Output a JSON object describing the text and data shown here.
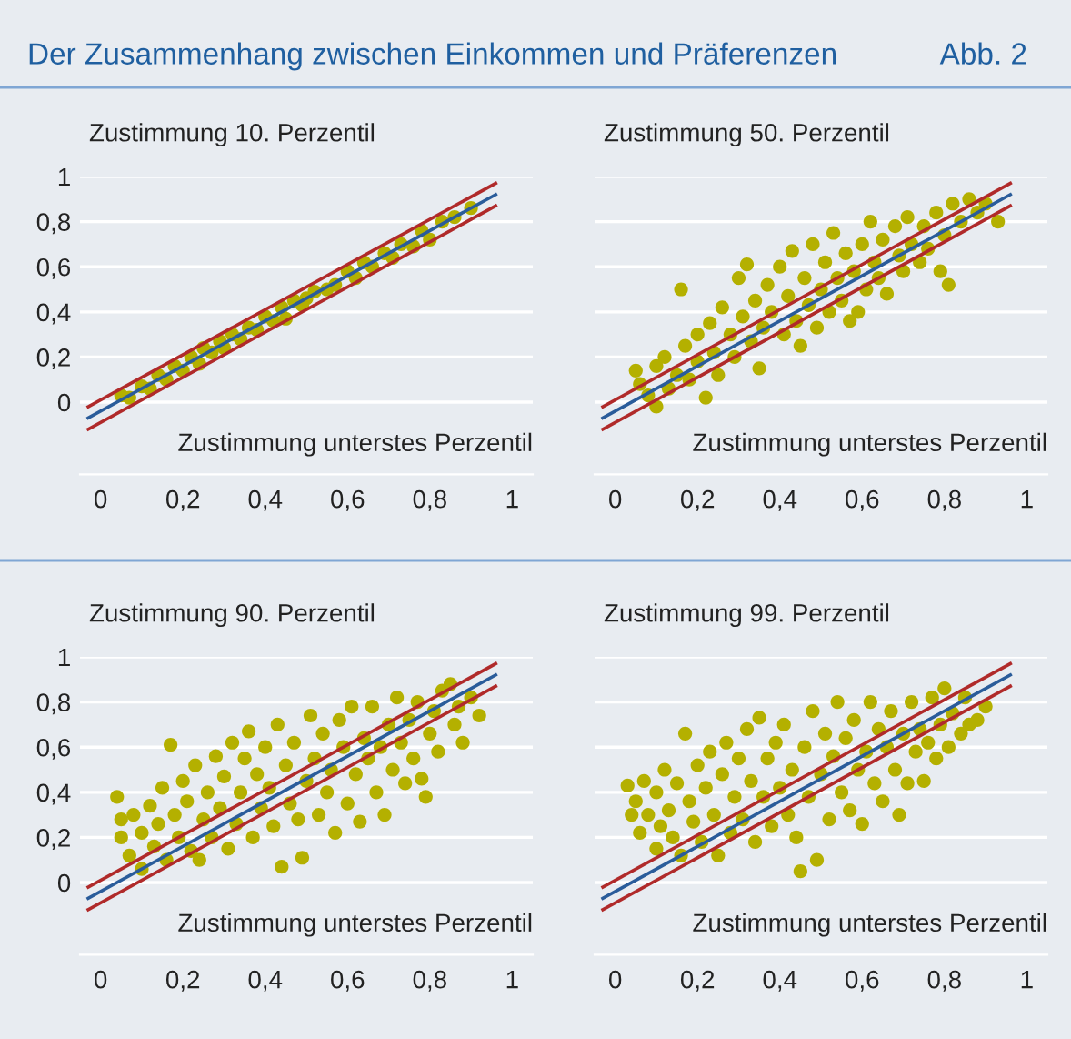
{
  "chart_data": [
    {
      "type": "scatter",
      "title": "Der Zusammenhang zwischen Einkommen und Präferenzen",
      "annotations": [
        "Abb. 2"
      ],
      "ylabel": "Zustimmung 10. Perzentil",
      "xlabel": "Zustimmung unterstes Perzentil",
      "xlim": [
        -0.05,
        1.05
      ],
      "ylim": [
        -0.32,
        1
      ],
      "xticks": [
        0,
        {
          "value": 0.2,
          "label": "0,2"
        },
        {
          "value": 0.4,
          "label": "0,4"
        },
        {
          "value": 0.6,
          "label": "0,6"
        },
        {
          "value": 0.8,
          "label": "0,8"
        },
        1
      ],
      "yticks": [
        0,
        {
          "value": 0.2,
          "label": "0,2"
        },
        {
          "value": 0.4,
          "label": "0,4"
        },
        {
          "value": 0.6,
          "label": "0,6"
        },
        {
          "value": 0.8,
          "label": "0,8"
        },
        1
      ],
      "grid": "y",
      "series": [
        {
          "marker": "circle",
          "color": "#b4b000",
          "x": [
            0.05,
            0.07,
            0.1,
            0.12,
            0.14,
            0.16,
            0.18,
            0.2,
            0.22,
            0.24,
            0.25,
            0.27,
            0.29,
            0.3,
            0.32,
            0.34,
            0.36,
            0.38,
            0.4,
            0.42,
            0.44,
            0.45,
            0.47,
            0.49,
            0.5,
            0.52,
            0.55,
            0.57,
            0.6,
            0.62,
            0.64,
            0.66,
            0.69,
            0.71,
            0.73,
            0.76,
            0.78,
            0.8,
            0.83,
            0.86,
            0.9
          ],
          "values": [
            0.03,
            0.02,
            0.07,
            0.06,
            0.12,
            0.1,
            0.16,
            0.14,
            0.2,
            0.17,
            0.24,
            0.22,
            0.27,
            0.24,
            0.3,
            0.28,
            0.33,
            0.32,
            0.38,
            0.36,
            0.42,
            0.37,
            0.45,
            0.43,
            0.46,
            0.49,
            0.5,
            0.52,
            0.58,
            0.55,
            0.62,
            0.6,
            0.66,
            0.64,
            0.7,
            0.69,
            0.76,
            0.72,
            0.8,
            0.82,
            0.86
          ]
        },
        {
          "type": "line",
          "color": "#b02a2a",
          "x": [
            -0.03,
            0.96
          ],
          "values": [
            -0.02,
            0.97
          ]
        },
        {
          "type": "line",
          "color": "#2a5c9a",
          "x": [
            -0.03,
            0.96
          ],
          "values": [
            -0.07,
            0.92
          ]
        },
        {
          "type": "line",
          "color": "#b02a2a",
          "x": [
            -0.03,
            0.96
          ],
          "values": [
            -0.12,
            0.87
          ]
        }
      ]
    },
    {
      "type": "scatter",
      "ylabel": "Zustimmung 50. Perzentil",
      "xlabel": "Zustimmung unterstes Perzentil",
      "xlim": [
        -0.05,
        1.05
      ],
      "ylim": [
        -0.32,
        1
      ],
      "xticks": [
        0,
        {
          "value": 0.2,
          "label": "0,2"
        },
        {
          "value": 0.4,
          "label": "0,4"
        },
        {
          "value": 0.6,
          "label": "0,6"
        },
        {
          "value": 0.8,
          "label": "0,8"
        },
        1
      ],
      "yticks": [
        {
          "value": 0,
          "label": null
        },
        {
          "value": 0.2,
          "label": null
        },
        {
          "value": 0.4,
          "label": null
        },
        {
          "value": 0.6,
          "label": null
        },
        {
          "value": 0.8,
          "label": null
        },
        {
          "value": 1,
          "label": null
        }
      ],
      "grid": "y",
      "tick_labels": "x",
      "series": [
        {
          "marker": "circle",
          "color": "#b4b000",
          "x": [
            0.05,
            0.06,
            0.08,
            0.1,
            0.1,
            0.12,
            0.13,
            0.15,
            0.16,
            0.17,
            0.18,
            0.2,
            0.2,
            0.22,
            0.23,
            0.24,
            0.25,
            0.26,
            0.28,
            0.29,
            0.3,
            0.31,
            0.32,
            0.33,
            0.34,
            0.35,
            0.36,
            0.37,
            0.38,
            0.4,
            0.41,
            0.42,
            0.43,
            0.44,
            0.45,
            0.46,
            0.47,
            0.48,
            0.49,
            0.5,
            0.51,
            0.52,
            0.53,
            0.54,
            0.55,
            0.56,
            0.57,
            0.58,
            0.59,
            0.6,
            0.61,
            0.62,
            0.63,
            0.64,
            0.65,
            0.66,
            0.68,
            0.69,
            0.7,
            0.71,
            0.72,
            0.74,
            0.75,
            0.76,
            0.78,
            0.79,
            0.8,
            0.81,
            0.82,
            0.84,
            0.86,
            0.88,
            0.9,
            0.93
          ],
          "values": [
            0.14,
            0.08,
            0.03,
            -0.02,
            0.16,
            0.2,
            0.06,
            0.12,
            0.5,
            0.25,
            0.1,
            0.3,
            0.18,
            0.02,
            0.35,
            0.22,
            0.12,
            0.42,
            0.3,
            0.2,
            0.55,
            0.38,
            0.61,
            0.27,
            0.45,
            0.15,
            0.33,
            0.52,
            0.4,
            0.6,
            0.3,
            0.47,
            0.67,
            0.36,
            0.25,
            0.55,
            0.43,
            0.7,
            0.33,
            0.5,
            0.62,
            0.4,
            0.75,
            0.55,
            0.45,
            0.66,
            0.36,
            0.58,
            0.4,
            0.7,
            0.5,
            0.8,
            0.62,
            0.55,
            0.72,
            0.48,
            0.78,
            0.65,
            0.58,
            0.82,
            0.7,
            0.62,
            0.78,
            0.68,
            0.84,
            0.58,
            0.74,
            0.52,
            0.88,
            0.8,
            0.9,
            0.84,
            0.88,
            0.8
          ]
        },
        {
          "type": "line",
          "color": "#b02a2a",
          "x": [
            -0.03,
            0.96
          ],
          "values": [
            -0.02,
            0.97
          ]
        },
        {
          "type": "line",
          "color": "#2a5c9a",
          "x": [
            -0.03,
            0.96
          ],
          "values": [
            -0.07,
            0.92
          ]
        },
        {
          "type": "line",
          "color": "#b02a2a",
          "x": [
            -0.03,
            0.96
          ],
          "values": [
            -0.12,
            0.87
          ]
        }
      ]
    },
    {
      "type": "scatter",
      "ylabel": "Zustimmung 90. Perzentil",
      "xlabel": "Zustimmung unterstes Perzentil",
      "xlim": [
        -0.05,
        1.05
      ],
      "ylim": [
        -0.32,
        1
      ],
      "xticks": [
        0,
        {
          "value": 0.2,
          "label": "0,2"
        },
        {
          "value": 0.4,
          "label": "0,4"
        },
        {
          "value": 0.6,
          "label": "0,6"
        },
        {
          "value": 0.8,
          "label": "0,8"
        },
        1
      ],
      "yticks": [
        0,
        {
          "value": 0.2,
          "label": "0,2"
        },
        {
          "value": 0.4,
          "label": "0,4"
        },
        {
          "value": 0.6,
          "label": "0,6"
        },
        {
          "value": 0.8,
          "label": "0,8"
        },
        1
      ],
      "grid": "y",
      "series": [
        {
          "marker": "circle",
          "color": "#b4b000",
          "x": [
            0.04,
            0.05,
            0.05,
            0.07,
            0.08,
            0.1,
            0.1,
            0.12,
            0.13,
            0.14,
            0.15,
            0.16,
            0.17,
            0.18,
            0.19,
            0.2,
            0.21,
            0.22,
            0.23,
            0.24,
            0.25,
            0.26,
            0.27,
            0.28,
            0.29,
            0.3,
            0.31,
            0.32,
            0.33,
            0.34,
            0.35,
            0.36,
            0.37,
            0.38,
            0.39,
            0.4,
            0.41,
            0.42,
            0.43,
            0.44,
            0.45,
            0.46,
            0.47,
            0.48,
            0.49,
            0.5,
            0.51,
            0.52,
            0.53,
            0.54,
            0.55,
            0.56,
            0.57,
            0.58,
            0.59,
            0.6,
            0.61,
            0.62,
            0.63,
            0.64,
            0.65,
            0.66,
            0.67,
            0.68,
            0.69,
            0.7,
            0.71,
            0.72,
            0.73,
            0.74,
            0.75,
            0.76,
            0.77,
            0.78,
            0.79,
            0.8,
            0.81,
            0.82,
            0.83,
            0.85,
            0.86,
            0.87,
            0.88,
            0.9,
            0.92
          ],
          "values": [
            0.38,
            0.2,
            0.28,
            0.12,
            0.3,
            0.22,
            0.06,
            0.34,
            0.16,
            0.26,
            0.42,
            0.1,
            0.61,
            0.3,
            0.2,
            0.45,
            0.36,
            0.14,
            0.52,
            0.1,
            0.28,
            0.4,
            0.2,
            0.56,
            0.33,
            0.47,
            0.15,
            0.62,
            0.26,
            0.4,
            0.55,
            0.67,
            0.2,
            0.48,
            0.33,
            0.6,
            0.42,
            0.25,
            0.7,
            0.07,
            0.52,
            0.35,
            0.62,
            0.28,
            0.11,
            0.45,
            0.74,
            0.55,
            0.3,
            0.66,
            0.4,
            0.5,
            0.22,
            0.72,
            0.6,
            0.35,
            0.78,
            0.48,
            0.27,
            0.64,
            0.55,
            0.78,
            0.4,
            0.6,
            0.3,
            0.7,
            0.5,
            0.82,
            0.62,
            0.44,
            0.72,
            0.55,
            0.8,
            0.46,
            0.38,
            0.66,
            0.76,
            0.58,
            0.85,
            0.88,
            0.7,
            0.78,
            0.62,
            0.82,
            0.74
          ]
        },
        {
          "type": "line",
          "color": "#b02a2a",
          "x": [
            -0.03,
            0.96
          ],
          "values": [
            -0.02,
            0.97
          ]
        },
        {
          "type": "line",
          "color": "#2a5c9a",
          "x": [
            -0.03,
            0.96
          ],
          "values": [
            -0.07,
            0.92
          ]
        },
        {
          "type": "line",
          "color": "#b02a2a",
          "x": [
            -0.03,
            0.96
          ],
          "values": [
            -0.12,
            0.87
          ]
        }
      ]
    },
    {
      "type": "scatter",
      "ylabel": "Zustimmung 99. Perzentil",
      "xlabel": "Zustimmung unterstes Perzentil",
      "xlim": [
        -0.05,
        1.05
      ],
      "ylim": [
        -0.32,
        1
      ],
      "xticks": [
        0,
        {
          "value": 0.2,
          "label": "0,2"
        },
        {
          "value": 0.4,
          "label": "0,4"
        },
        {
          "value": 0.6,
          "label": "0,6"
        },
        {
          "value": 0.8,
          "label": "0,8"
        },
        1
      ],
      "yticks": [
        {
          "value": 0,
          "label": null
        },
        {
          "value": 0.2,
          "label": null
        },
        {
          "value": 0.4,
          "label": null
        },
        {
          "value": 0.6,
          "label": null
        },
        {
          "value": 0.8,
          "label": null
        },
        {
          "value": 1,
          "label": null
        }
      ],
      "grid": "y",
      "tick_labels": "x",
      "series": [
        {
          "marker": "circle",
          "color": "#b4b000",
          "x": [
            0.03,
            0.04,
            0.05,
            0.06,
            0.07,
            0.08,
            0.1,
            0.1,
            0.11,
            0.12,
            0.13,
            0.14,
            0.15,
            0.16,
            0.17,
            0.18,
            0.19,
            0.2,
            0.21,
            0.22,
            0.23,
            0.24,
            0.25,
            0.26,
            0.27,
            0.28,
            0.29,
            0.3,
            0.31,
            0.32,
            0.33,
            0.34,
            0.35,
            0.36,
            0.37,
            0.38,
            0.39,
            0.4,
            0.41,
            0.42,
            0.43,
            0.44,
            0.45,
            0.46,
            0.47,
            0.48,
            0.49,
            0.5,
            0.51,
            0.52,
            0.53,
            0.54,
            0.55,
            0.56,
            0.57,
            0.58,
            0.59,
            0.6,
            0.61,
            0.62,
            0.63,
            0.64,
            0.65,
            0.66,
            0.67,
            0.68,
            0.69,
            0.7,
            0.71,
            0.72,
            0.73,
            0.74,
            0.75,
            0.76,
            0.77,
            0.78,
            0.79,
            0.8,
            0.81,
            0.82,
            0.84,
            0.85,
            0.86,
            0.88,
            0.9
          ],
          "values": [
            0.43,
            0.3,
            0.36,
            0.22,
            0.45,
            0.3,
            0.15,
            0.4,
            0.25,
            0.5,
            0.32,
            0.2,
            0.44,
            0.12,
            0.66,
            0.36,
            0.27,
            0.52,
            0.18,
            0.42,
            0.58,
            0.3,
            0.12,
            0.48,
            0.62,
            0.22,
            0.38,
            0.55,
            0.28,
            0.68,
            0.45,
            0.18,
            0.73,
            0.38,
            0.55,
            0.25,
            0.62,
            0.42,
            0.7,
            0.3,
            0.5,
            0.2,
            0.05,
            0.6,
            0.38,
            0.76,
            0.1,
            0.48,
            0.66,
            0.28,
            0.56,
            0.8,
            0.4,
            0.64,
            0.32,
            0.72,
            0.5,
            0.26,
            0.58,
            0.8,
            0.44,
            0.68,
            0.36,
            0.6,
            0.76,
            0.5,
            0.3,
            0.66,
            0.44,
            0.8,
            0.58,
            0.68,
            0.45,
            0.62,
            0.82,
            0.55,
            0.7,
            0.86,
            0.6,
            0.75,
            0.66,
            0.82,
            0.7,
            0.72,
            0.78
          ]
        },
        {
          "type": "line",
          "color": "#b02a2a",
          "x": [
            -0.03,
            0.96
          ],
          "values": [
            -0.02,
            0.97
          ]
        },
        {
          "type": "line",
          "color": "#2a5c9a",
          "x": [
            -0.03,
            0.96
          ],
          "values": [
            -0.07,
            0.92
          ]
        },
        {
          "type": "line",
          "color": "#b02a2a",
          "x": [
            -0.03,
            0.96
          ],
          "values": [
            -0.12,
            0.87
          ]
        }
      ]
    }
  ]
}
